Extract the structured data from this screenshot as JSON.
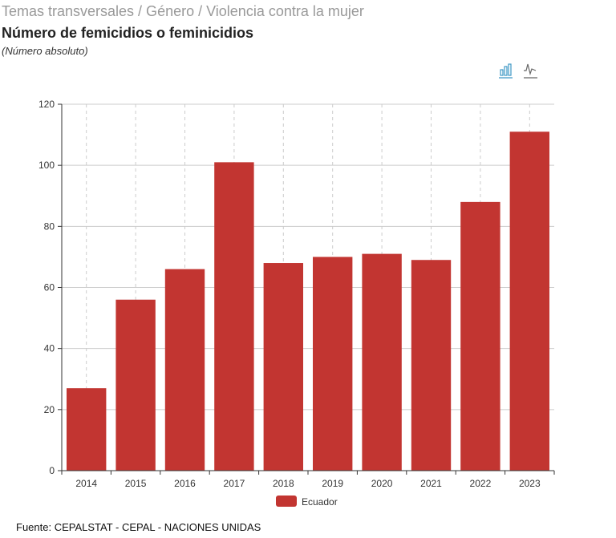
{
  "header": {
    "breadcrumb": "Temas transversales / Género / Violencia contra la mujer",
    "title": "Número de femicidios o feminicidios",
    "subtitle": "(Número absoluto)"
  },
  "toolbar": {
    "icons": [
      "bar-chart-icon",
      "line-chart-icon"
    ],
    "active_color": "#3e98c5"
  },
  "footer": {
    "source": "Fuente: CEPALSTAT - CEPAL - NACIONES UNIDAS"
  },
  "chart_data": {
    "type": "bar",
    "title": "Número de femicidios o feminicidios",
    "categories": [
      "2014",
      "2015",
      "2016",
      "2017",
      "2018",
      "2019",
      "2020",
      "2021",
      "2022",
      "2023"
    ],
    "series": [
      {
        "name": "Ecuador",
        "color": "#c23531",
        "values": [
          27,
          56,
          66,
          101,
          68,
          70,
          71,
          69,
          88,
          111
        ]
      }
    ],
    "ylim": [
      0,
      120
    ],
    "yticks": [
      0,
      20,
      40,
      60,
      80,
      100,
      120
    ],
    "grid": true,
    "legend": "bottom-center"
  }
}
